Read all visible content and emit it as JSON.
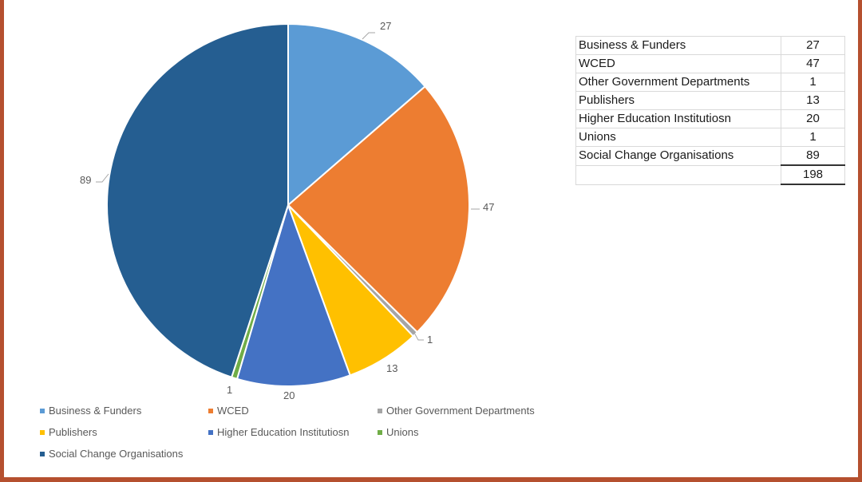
{
  "chart_data": {
    "type": "pie",
    "title": "",
    "categories": [
      "Business & Funders",
      "WCED",
      "Other Government Departments",
      "Publishers",
      "Higher Education Institutiosn",
      "Unions",
      "Social Change Organisations"
    ],
    "values": [
      27,
      47,
      1,
      13,
      20,
      1,
      89
    ],
    "colors": [
      "#5B9BD5",
      "#ED7D31",
      "#A5A5A5",
      "#FFC000",
      "#4472C4",
      "#70AD47",
      "#255E91"
    ],
    "data_labels": [
      "27",
      "47",
      "1",
      "13",
      "20",
      "1",
      "89"
    ],
    "total": 198,
    "start_angle": "12 o'clock, clockwise",
    "legend_position": "bottom"
  },
  "legend": {
    "items": [
      {
        "label": "Business & Funders",
        "color": "#5B9BD5"
      },
      {
        "label": "WCED",
        "color": "#ED7D31"
      },
      {
        "label": "Other Government Departments",
        "color": "#A5A5A5"
      },
      {
        "label": "Publishers",
        "color": "#FFC000"
      },
      {
        "label": "Higher Education Institutiosn",
        "color": "#4472C4"
      },
      {
        "label": "Unions",
        "color": "#70AD47"
      },
      {
        "label": "Social Change Organisations",
        "color": "#255E91"
      }
    ]
  },
  "table": {
    "rows": [
      {
        "label": "Business & Funders",
        "value": "27"
      },
      {
        "label": "WCED",
        "value": "47"
      },
      {
        "label": "Other Government Departments",
        "value": "1"
      },
      {
        "label": "Publishers",
        "value": "13"
      },
      {
        "label": "Higher Education Institutiosn",
        "value": "20"
      },
      {
        "label": "Unions",
        "value": "1"
      },
      {
        "label": "Social Change Organisations",
        "value": "89"
      }
    ],
    "total": {
      "label": "",
      "value": "198"
    }
  },
  "frame": {
    "border_color": "#B5502F"
  }
}
